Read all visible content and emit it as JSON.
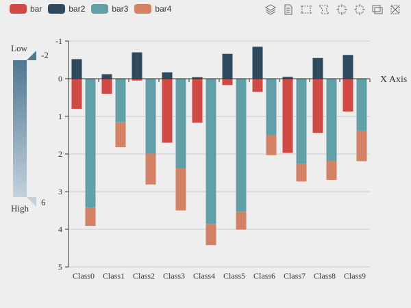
{
  "legend": [
    {
      "name": "bar",
      "color": "#d14a45"
    },
    {
      "name": "bar2",
      "color": "#2f4a5f"
    },
    {
      "name": "bar3",
      "color": "#61a0a8"
    },
    {
      "name": "bar4",
      "color": "#d48265"
    }
  ],
  "toolbox": [
    "layers-icon",
    "data-view-icon",
    "rect-select-icon",
    "lasso-select-icon",
    "keep-select-icon",
    "clear-select-icon",
    "restore-icon",
    "save-image-icon"
  ],
  "visual_map": {
    "low_label": "Low",
    "high_label": "High",
    "min_text": "-2",
    "max_text": "6",
    "color_from": "#4f7891",
    "color_to": "#c3d1dc"
  },
  "chart_data": {
    "type": "bar",
    "xlabel": "X Axis",
    "ylabel": "",
    "ylim": [
      -1,
      5
    ],
    "y_inverse": true,
    "y_ticks": [
      "-1",
      "0",
      "1",
      "2",
      "3",
      "4",
      "5"
    ],
    "categories": [
      "Class0",
      "Class1",
      "Class2",
      "Class3",
      "Class4",
      "Class5",
      "Class6",
      "Class7",
      "Class8",
      "Class9"
    ],
    "series": [
      {
        "name": "bar",
        "stack": "one",
        "color": "#d14a45",
        "values": [
          0.8,
          0.4,
          0.05,
          1.7,
          1.17,
          0.17,
          0.35,
          1.97,
          1.44,
          0.87
        ]
      },
      {
        "name": "bar2",
        "stack": "one",
        "color": "#2f4a5f",
        "values": [
          -0.52,
          -0.12,
          -0.7,
          -0.17,
          -0.04,
          -0.66,
          -0.85,
          -0.05,
          -0.55,
          -0.63
        ]
      },
      {
        "name": "bar3",
        "stack": "two",
        "color": "#61a0a8",
        "values": [
          3.42,
          1.16,
          1.99,
          2.38,
          3.86,
          3.54,
          1.5,
          2.27,
          2.18,
          1.38
        ]
      },
      {
        "name": "bar4",
        "stack": "two",
        "color": "#d48265",
        "values": [
          0.49,
          0.66,
          0.82,
          1.12,
          0.56,
          0.47,
          0.53,
          0.46,
          0.51,
          0.81
        ]
      }
    ]
  }
}
